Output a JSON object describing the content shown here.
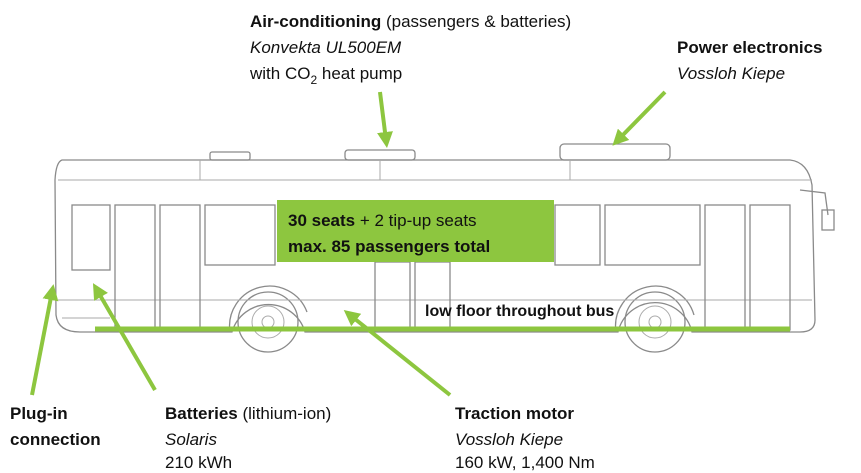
{
  "air_conditioning": {
    "title": "Air-conditioning",
    "note": " (passengers & batteries)",
    "model": "Konvekta UL500EM",
    "feature": [
      "with CO",
      "2",
      " heat pump"
    ]
  },
  "power_electronics": {
    "title": "Power electronics",
    "maker": "Vossloh Kiepe"
  },
  "capacity": {
    "seats": "30 seats",
    "extra": " + 2 tip-up seats",
    "total": "max. 85 passengers total"
  },
  "floor": "low floor throughout bus",
  "plug_in": [
    "Plug-in",
    "connection"
  ],
  "batteries": {
    "title": "Batteries",
    "note": " (lithium-ion)",
    "maker": "Solaris",
    "capacity": "210 kWh"
  },
  "traction_motor": {
    "title": "Traction motor",
    "maker": "Vossloh Kiepe",
    "specs": "160 kW, 1,400 Nm"
  }
}
